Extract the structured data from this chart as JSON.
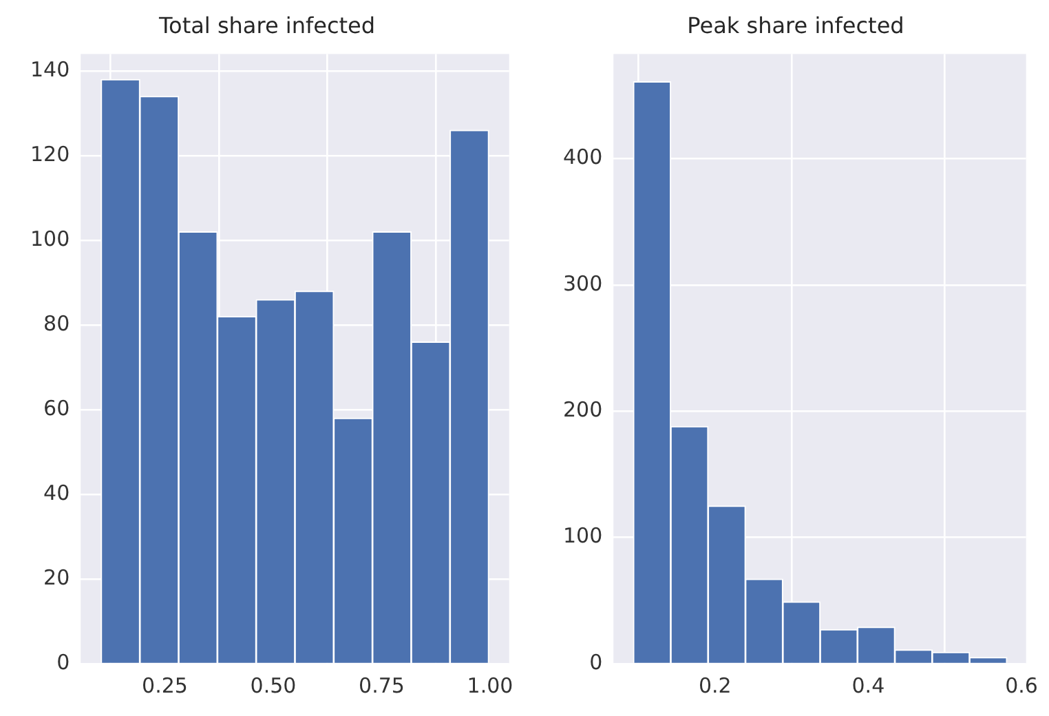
{
  "chart_data": [
    {
      "type": "histogram",
      "title": "Total share infected",
      "bins": [
        0.103,
        0.1924,
        0.2818,
        0.3712,
        0.4606,
        0.55,
        0.6394,
        0.7288,
        0.8182,
        0.9076,
        0.997
      ],
      "values": [
        138,
        134,
        102,
        82,
        86,
        88,
        58,
        102,
        76,
        126
      ],
      "color": "#4c72b0",
      "xlim": [
        0.056,
        1.044
      ],
      "xticks": [
        {
          "value": 0.25,
          "label": "0.25"
        },
        {
          "value": 0.5,
          "label": "0.50"
        },
        {
          "value": 0.75,
          "label": "0.75"
        },
        {
          "value": 1,
          "label": "1.00"
        }
      ],
      "ylim": [
        0,
        144
      ],
      "yticks": [
        0,
        20,
        40,
        60,
        80,
        100,
        120,
        140
      ],
      "grid": true
    },
    {
      "type": "histogram",
      "title": "Peak share infected",
      "bins": [
        0.0935,
        0.14225,
        0.191,
        0.23975,
        0.2885,
        0.33725,
        0.386,
        0.43475,
        0.4835,
        0.53225,
        0.581
      ],
      "values": [
        461,
        188,
        125,
        67,
        49,
        27,
        29,
        11,
        9,
        5
      ],
      "color": "#4c72b0",
      "xlim": [
        0.0675,
        0.606
      ],
      "xticks": [
        0.2,
        0.4,
        0.6
      ],
      "ylim": [
        0,
        483
      ],
      "yticks": [
        0,
        100,
        200,
        300,
        400
      ],
      "grid": true
    }
  ]
}
